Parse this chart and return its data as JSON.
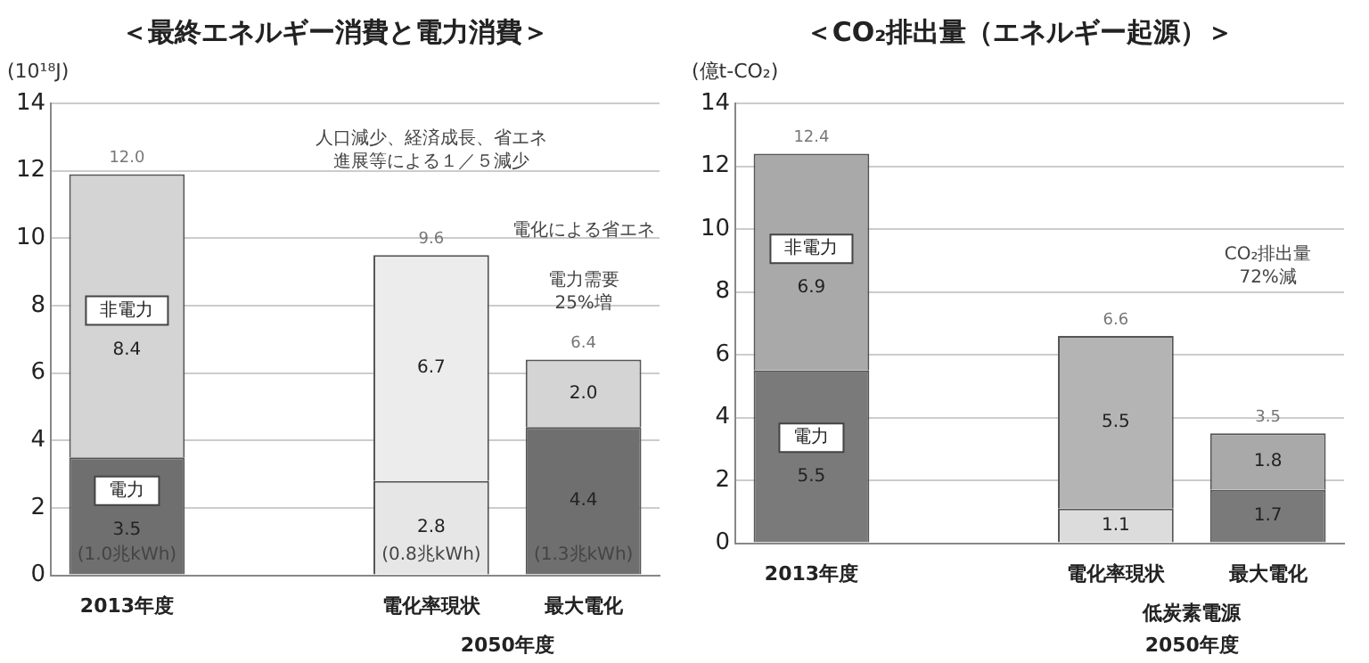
{
  "chart_data": [
    {
      "type": "bar",
      "title": "＜最終エネルギー消費と電力消費＞",
      "ylabel": "(10¹⁸J)",
      "categories": [
        "2013年度",
        null,
        "電化率現状",
        "最大電化"
      ],
      "stacked": true,
      "totals": [
        "12.0",
        null,
        "9.6",
        "6.4"
      ],
      "ylim": [
        0,
        14
      ],
      "yticks": [
        0,
        2,
        4,
        6,
        8,
        10,
        12,
        14
      ],
      "grid": "y",
      "legend": false,
      "series": [
        {
          "name": "電力",
          "colors": [
            "#6f6f6f",
            null,
            "#e6e6e6",
            "#6f6f6f"
          ],
          "values": [
            3.5,
            null,
            2.8,
            4.4
          ],
          "value_labels": [
            "3.5",
            null,
            "2.8",
            "4.4"
          ]
        },
        {
          "name": "非電力",
          "colors": [
            "#d4d4d4",
            null,
            "#ececec",
            "#d4d4d4"
          ],
          "values": [
            8.4,
            null,
            6.7,
            2.0
          ],
          "value_labels": [
            "8.4",
            null,
            "6.7",
            "2.0"
          ]
        }
      ],
      "annotations": [
        "人口減少、経済成長、省エネ進展等による１／５減少",
        "電化による省エネ",
        "電力需要25%増",
        "(1.0兆kWh)",
        "(0.8兆kWh)",
        "(1.3兆kWh)",
        "2050年度"
      ]
    },
    {
      "type": "bar",
      "title": "＜CO₂排出量（エネルギー起源）＞",
      "ylabel": "(億t-CO₂)",
      "categories": [
        "2013年度",
        null,
        "電化率現状",
        "最大電化"
      ],
      "stacked": true,
      "totals": [
        "12.4",
        null,
        "6.6",
        "3.5"
      ],
      "ylim": [
        0,
        14
      ],
      "yticks": [
        0,
        2,
        4,
        6,
        8,
        10,
        12,
        14
      ],
      "grid": "y",
      "legend": false,
      "series": [
        {
          "name": "電力",
          "colors": [
            "#7a7a7a",
            null,
            "#dcdcdc",
            "#7a7a7a"
          ],
          "values": [
            5.5,
            null,
            1.1,
            1.7
          ],
          "value_labels": [
            "5.5",
            null,
            "1.1",
            "1.7"
          ]
        },
        {
          "name": "非電力",
          "colors": [
            "#a9a9a9",
            null,
            "#b4b4b4",
            "#a9a9a9"
          ],
          "values": [
            6.9,
            null,
            5.5,
            1.8
          ],
          "value_labels": [
            "6.9",
            null,
            "5.5",
            "1.8"
          ]
        }
      ],
      "annotations": [
        "CO₂排出量72%減",
        "低炭素電源",
        "2050年度"
      ]
    }
  ]
}
